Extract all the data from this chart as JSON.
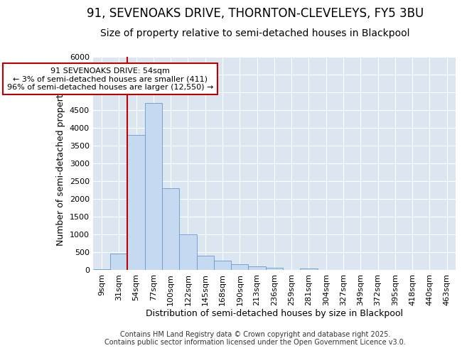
{
  "title": "91, SEVENOAKS DRIVE, THORNTON-CLEVELEYS, FY5 3BU",
  "subtitle": "Size of property relative to semi-detached houses in Blackpool",
  "xlabel": "Distribution of semi-detached houses by size in Blackpool",
  "ylabel": "Number of semi-detached properties",
  "categories": [
    "9sqm",
    "31sqm",
    "54sqm",
    "77sqm",
    "100sqm",
    "122sqm",
    "145sqm",
    "168sqm",
    "190sqm",
    "213sqm",
    "236sqm",
    "259sqm",
    "281sqm",
    "304sqm",
    "327sqm",
    "349sqm",
    "372sqm",
    "395sqm",
    "418sqm",
    "440sqm",
    "463sqm"
  ],
  "values": [
    5,
    450,
    3800,
    4700,
    2300,
    1000,
    400,
    250,
    150,
    100,
    60,
    0,
    30,
    0,
    0,
    0,
    0,
    0,
    0,
    0,
    0
  ],
  "highlight_index": 2,
  "highlight_color": "#c00000",
  "bar_color": "#c5d9f1",
  "bar_edge_color": "#6699cc",
  "background_color": "#dce6f1",
  "ylim": [
    0,
    6000
  ],
  "yticks": [
    0,
    500,
    1000,
    1500,
    2000,
    2500,
    3000,
    3500,
    4000,
    4500,
    5000,
    5500,
    6000
  ],
  "annotation_text": "91 SEVENOAKS DRIVE: 54sqm\n← 3% of semi-detached houses are smaller (411)\n96% of semi-detached houses are larger (12,550) →",
  "footer_line1": "Contains HM Land Registry data © Crown copyright and database right 2025.",
  "footer_line2": "Contains public sector information licensed under the Open Government Licence v3.0.",
  "title_fontsize": 12,
  "subtitle_fontsize": 10,
  "axis_label_fontsize": 9,
  "tick_fontsize": 8,
  "annotation_fontsize": 8,
  "footer_fontsize": 7
}
